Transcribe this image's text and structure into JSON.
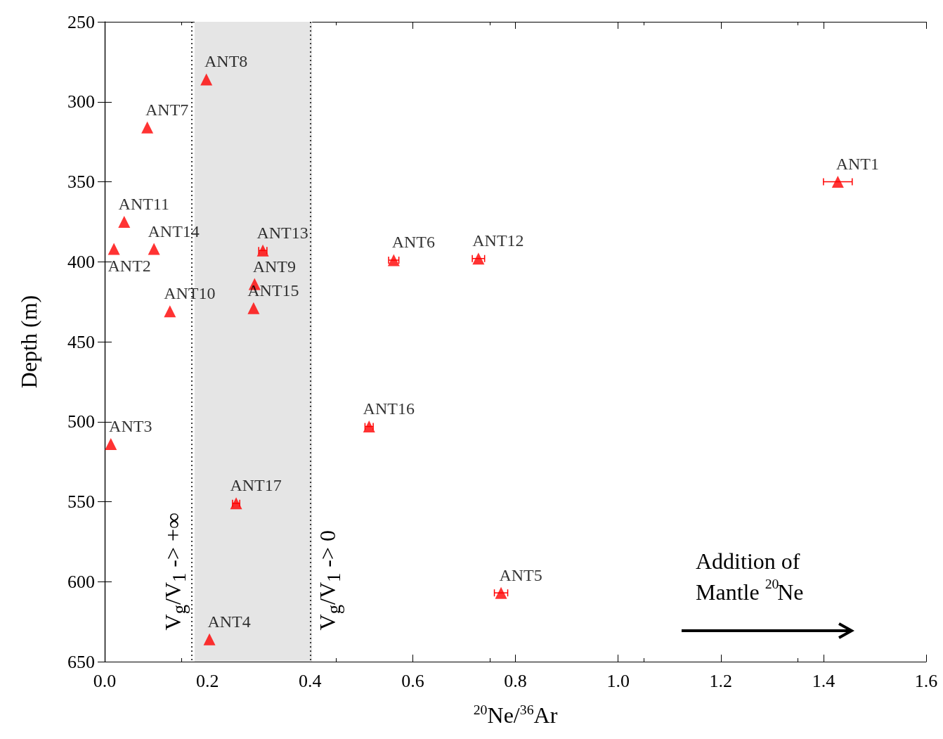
{
  "chart_data": {
    "type": "scatter",
    "xlabel": "$^{20}$Ne/$^{36}$Ar",
    "ylabel": "Depth (m)",
    "x": [
      0.198,
      0.083,
      1.428,
      0.038,
      0.018,
      0.096,
      0.308,
      0.563,
      0.728,
      0.292,
      0.29,
      0.127,
      0.515,
      0.012,
      0.256,
      0.772,
      0.204
    ],
    "values": [
      286,
      316,
      350,
      375,
      392,
      392,
      393,
      399,
      398,
      414,
      429,
      431,
      503,
      514,
      551,
      607,
      636
    ],
    "value_labels": [
      "ANT8",
      "ANT7",
      "ANT1",
      "ANT11",
      "ANT2",
      "ANT14",
      "ANT13",
      "ANT6",
      "ANT12",
      "ANT9",
      "ANT15",
      "ANT10",
      "ANT16",
      "ANT3",
      "ANT17",
      "ANT5",
      "ANT4"
    ],
    "xerrors": [
      null,
      null,
      0.028,
      null,
      null,
      null,
      0.008,
      0.01,
      0.012,
      null,
      null,
      null,
      0.008,
      null,
      0.007,
      0.013,
      null
    ],
    "color": "#ff0000",
    "marker": "triangle",
    "xlim": [
      0,
      1.6
    ],
    "xticks": [
      {
        "value": 0,
        "label": "0.0"
      },
      0.2,
      0.4,
      0.6,
      0.8,
      {
        "value": 1,
        "label": "1.0"
      },
      1.2,
      1.4,
      1.6
    ],
    "ylim": [
      650,
      250
    ],
    "yticks": [
      250,
      300,
      350,
      400,
      450,
      500,
      550,
      600,
      650
    ],
    "grid": false,
    "bands": [
      {
        "axis": "x",
        "from": 0.175,
        "to": 0.404,
        "color": "#e5e5e5"
      }
    ],
    "ref_lines": [
      {
        "axis": "x",
        "value": 0.175,
        "label": "V$_{g}$/V$_{1}$ -> +∞",
        "line_style": "dotted",
        "color": "#000000"
      },
      {
        "axis": "x",
        "value": 0.404,
        "label": "V$_{g}$/V$_{1}$ -> 0",
        "line_style": "dotted",
        "color": "#000000"
      }
    ],
    "annotations": [
      "Addition of Mantle $^{20}$Ne"
    ]
  }
}
